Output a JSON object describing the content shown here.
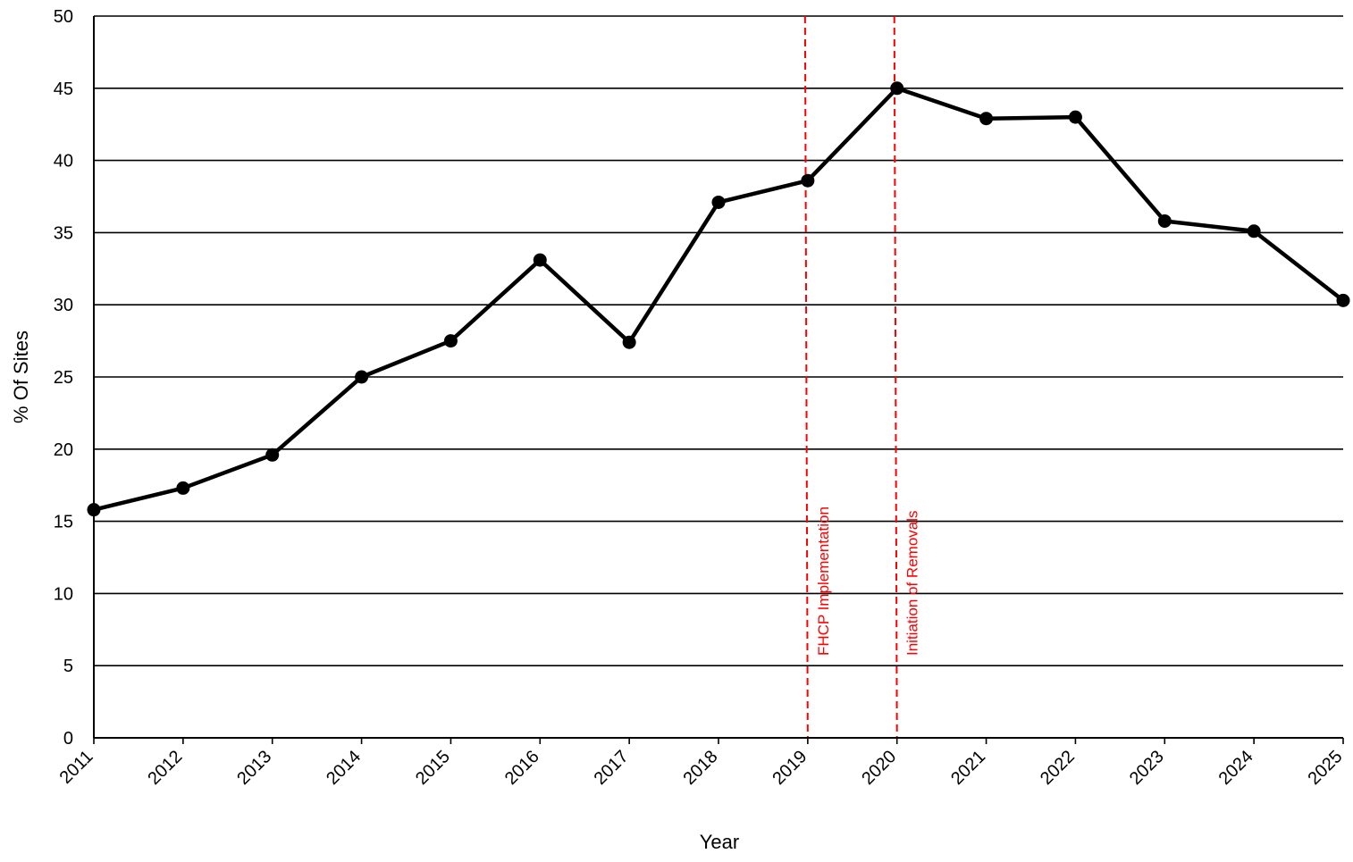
{
  "chart_data": {
    "type": "line",
    "title": "",
    "xlabel": "Year",
    "ylabel": "% Of Sites",
    "ylim": [
      0,
      50
    ],
    "y_ticks": [
      0,
      5,
      10,
      15,
      20,
      25,
      30,
      35,
      40,
      45,
      50
    ],
    "grid": "horizontal",
    "legend": "none",
    "categories": [
      "2011",
      "2012",
      "2013",
      "2014",
      "2015",
      "2016",
      "2017",
      "2018",
      "2019",
      "2020",
      "2021",
      "2022",
      "2023",
      "2024",
      "2025"
    ],
    "series": [
      {
        "values": [
          15.8,
          17.3,
          19.6,
          25.0,
          27.5,
          33.1,
          27.4,
          37.1,
          38.6,
          45.0,
          42.9,
          43.0,
          35.8,
          35.1,
          30.3
        ],
        "color": "#000000",
        "marker": "circle"
      }
    ],
    "annotations": [
      {
        "x": "2019",
        "label": "FHCP Implementation",
        "color": "#ff0000",
        "style": "dashed"
      },
      {
        "x": "2020",
        "label": "Initiation of Removals",
        "color": "#ff0000",
        "style": "dashed"
      }
    ]
  }
}
